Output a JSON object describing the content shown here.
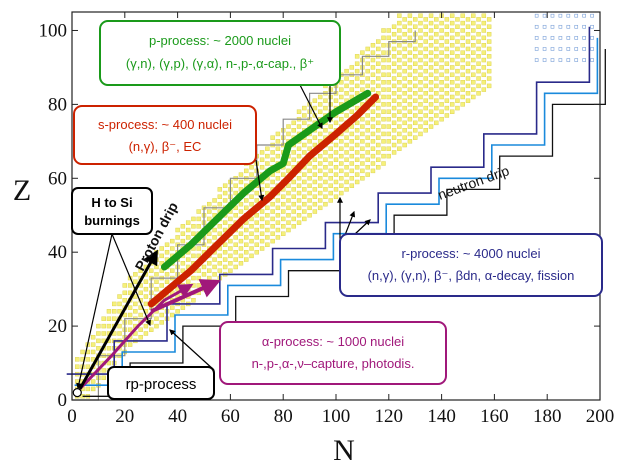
{
  "chart_data": {
    "type": "scatter",
    "title": "",
    "xlabel": "N",
    "ylabel": "Z",
    "xlim": [
      0,
      200
    ],
    "ylim": [
      0,
      105
    ],
    "xticks": [
      "0",
      "20",
      "40",
      "60",
      "80",
      "100",
      "120",
      "140",
      "160",
      "180",
      "200"
    ],
    "yticks": [
      "0",
      "20",
      "40",
      "60",
      "80",
      "100"
    ],
    "colors": {
      "p_process": "#1a9a1a",
      "s_process": "#cc2200",
      "r_process": "#2a2a8a",
      "alpha_process": "#a0187a",
      "stable_band": "#f5f07a",
      "proton_drip": "#888888",
      "neutron_drip": "#1a8adc"
    },
    "annotations": {
      "p_process": {
        "line1": "p-process: ~ 2000 nuclei",
        "line2": "(γ,n), (γ,p), (γ,α), n-,p-,α-cap., β⁺"
      },
      "s_process": {
        "line1": "s-process: ~ 400 nuclei",
        "line2": "(n,γ), β⁻, EC"
      },
      "h_si": {
        "line1": "H to Si",
        "line2": "burnings"
      },
      "r_process": {
        "line1": "r-process: ~ 4000 nuclei",
        "line2": "(n,γ), (γ,n), β⁻, βdn, α-decay, fission"
      },
      "alpha_process": {
        "line1": "α-process: ~ 1000 nuclei",
        "line2": "n-,p-,α-,ν–capture, photodis."
      },
      "rp_process": {
        "line1": "rp-process"
      },
      "proton_drip": "Proton drip",
      "neutron_drip": "neutron drip"
    },
    "paths": {
      "s_process": [
        [
          30,
          26
        ],
        [
          45,
          35
        ],
        [
          55,
          42
        ],
        [
          65,
          49
        ],
        [
          75,
          55
        ],
        [
          82,
          60
        ],
        [
          90,
          66
        ],
        [
          100,
          72
        ],
        [
          108,
          77
        ],
        [
          115,
          82
        ]
      ],
      "p_process": [
        [
          35,
          36
        ],
        [
          45,
          42
        ],
        [
          55,
          49
        ],
        [
          65,
          56
        ],
        [
          75,
          62
        ],
        [
          80,
          64
        ],
        [
          82,
          69
        ],
        [
          90,
          73
        ],
        [
          100,
          78
        ],
        [
          112,
          83
        ]
      ],
      "alpha_process": [
        [
          30,
          24
        ],
        [
          40,
          28
        ],
        [
          55,
          32
        ]
      ],
      "rp_process": [
        [
          3,
          3
        ],
        [
          15,
          12
        ],
        [
          25,
          20
        ],
        [
          35,
          27
        ],
        [
          45,
          31
        ]
      ],
      "h_si_arrow": [
        [
          3,
          3
        ],
        [
          32,
          40
        ]
      ],
      "proton_drip_line": [
        [
          0,
          0
        ],
        [
          10,
          12
        ],
        [
          20,
          22
        ],
        [
          30,
          33
        ],
        [
          40,
          42
        ],
        [
          50,
          52
        ],
        [
          60,
          60
        ],
        [
          70,
          69
        ],
        [
          80,
          76
        ],
        [
          90,
          83
        ],
        [
          100,
          88
        ],
        [
          110,
          93
        ],
        [
          120,
          97
        ],
        [
          130,
          100
        ]
      ],
      "neutron_drip_line": [
        [
          2,
          1
        ],
        [
          20,
          10
        ],
        [
          40,
          20
        ],
        [
          60,
          28
        ],
        [
          80,
          35
        ],
        [
          100,
          42
        ],
        [
          120,
          50
        ],
        [
          140,
          57
        ],
        [
          160,
          66
        ],
        [
          180,
          80
        ],
        [
          200,
          95
        ]
      ]
    }
  }
}
